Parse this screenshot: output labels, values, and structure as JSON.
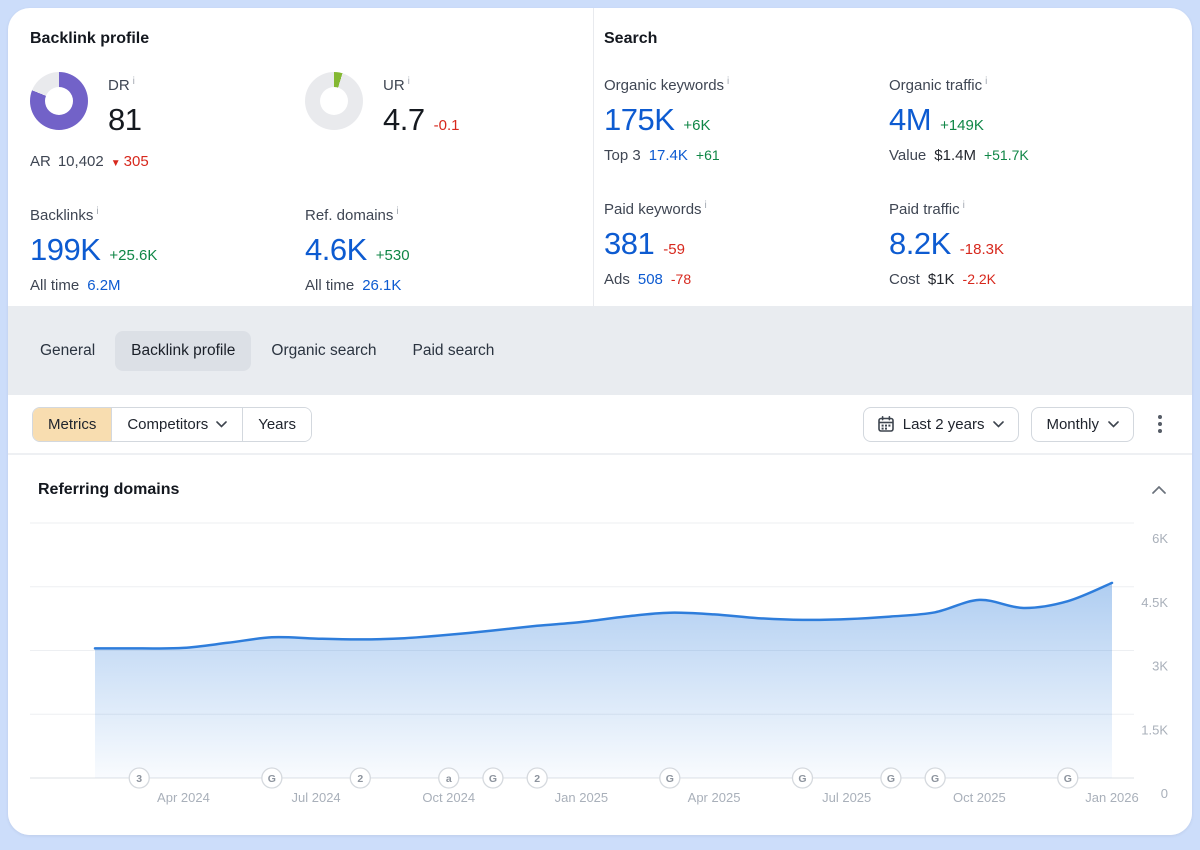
{
  "colors": {
    "blue": "#0d5bd1",
    "green": "#0f8646",
    "red": "#d7281d",
    "purple": "#7262c8",
    "lime": "#84b832",
    "chart_line": "#2e7ddb",
    "metrics_accent": "#f8ddb0",
    "page_background": "#ccddfa"
  },
  "backlink_profile": {
    "title": "Backlink profile",
    "dr": {
      "label": "DR",
      "value": "81",
      "percent": 81,
      "ar_label": "AR",
      "ar_value": "10,402",
      "ar_delta": "305"
    },
    "ur": {
      "label": "UR",
      "value": "4.7",
      "delta": "-0.1",
      "percent": 4.7
    },
    "backlinks": {
      "label": "Backlinks",
      "value": "199K",
      "delta": "+25.6K",
      "sub_label": "All time",
      "sub_value": "6.2M"
    },
    "ref_domains": {
      "label": "Ref. domains",
      "value": "4.6K",
      "delta": "+530",
      "sub_label": "All time",
      "sub_value": "26.1K"
    }
  },
  "search": {
    "title": "Search",
    "organic_keywords": {
      "label": "Organic keywords",
      "value": "175K",
      "delta": "+6K",
      "sub_label": "Top 3",
      "sub_value": "17.4K",
      "sub_delta": "+61"
    },
    "organic_traffic": {
      "label": "Organic traffic",
      "value": "4M",
      "delta": "+149K",
      "sub_label": "Value",
      "sub_value": "$1.4M",
      "sub_delta": "+51.7K"
    },
    "paid_keywords": {
      "label": "Paid keywords",
      "value": "381",
      "delta": "-59",
      "sub_label": "Ads",
      "sub_value": "508",
      "sub_delta": "-78"
    },
    "paid_traffic": {
      "label": "Paid traffic",
      "value": "8.2K",
      "delta": "-18.3K",
      "sub_label": "Cost",
      "sub_value": "$1K",
      "sub_delta": "-2.2K"
    }
  },
  "tabs": {
    "items": [
      {
        "label": "General",
        "active": false
      },
      {
        "label": "Backlink profile",
        "active": true
      },
      {
        "label": "Organic search",
        "active": false
      },
      {
        "label": "Paid search",
        "active": false
      }
    ]
  },
  "toolbar": {
    "metrics_label": "Metrics",
    "competitors_label": "Competitors",
    "years_label": "Years",
    "range_label": "Last 2 years",
    "granularity_label": "Monthly"
  },
  "chart_data": {
    "type": "area",
    "title": "Referring domains",
    "x": [
      "Feb 2024",
      "Mar 2024",
      "Apr 2024",
      "May 2024",
      "Jun 2024",
      "Jul 2024",
      "Aug 2024",
      "Sep 2024",
      "Oct 2024",
      "Nov 2024",
      "Dec 2024",
      "Jan 2025",
      "Feb 2025",
      "Mar 2025",
      "Apr 2025",
      "May 2025",
      "Jun 2025",
      "Jul 2025",
      "Aug 2025",
      "Sep 2025",
      "Oct 2025",
      "Nov 2025",
      "Dec 2025",
      "Jan 2026"
    ],
    "values": [
      3050,
      3050,
      3060,
      3180,
      3310,
      3280,
      3260,
      3290,
      3370,
      3470,
      3580,
      3670,
      3800,
      3890,
      3850,
      3760,
      3720,
      3740,
      3800,
      3900,
      4190,
      4000,
      4160,
      4590
    ],
    "ylim": [
      0,
      6000
    ],
    "yticks": [
      {
        "value": 6000,
        "label": "6K"
      },
      {
        "value": 4500,
        "label": "4.5K"
      },
      {
        "value": 3000,
        "label": "3K"
      },
      {
        "value": 1500,
        "label": "1.5K"
      },
      {
        "value": 0,
        "label": "0"
      }
    ],
    "xticks": [
      {
        "index": 2,
        "label": "Apr 2024"
      },
      {
        "index": 5,
        "label": "Jul 2024"
      },
      {
        "index": 8,
        "label": "Oct 2024"
      },
      {
        "index": 11,
        "label": "Jan 2025"
      },
      {
        "index": 14,
        "label": "Apr 2025"
      },
      {
        "index": 17,
        "label": "Jul 2025"
      },
      {
        "index": 20,
        "label": "Oct 2025"
      },
      {
        "index": 23,
        "label": "Jan 2026"
      }
    ],
    "markers": [
      {
        "index": 1,
        "label": "3"
      },
      {
        "index": 4,
        "label": "G"
      },
      {
        "index": 6,
        "label": "2"
      },
      {
        "index": 8,
        "label": "a"
      },
      {
        "index": 9,
        "label": "G"
      },
      {
        "index": 10,
        "label": "2"
      },
      {
        "index": 13,
        "label": "G"
      },
      {
        "index": 16,
        "label": "G"
      },
      {
        "index": 18,
        "label": "G"
      },
      {
        "index": 19,
        "label": "G"
      },
      {
        "index": 22,
        "label": "G"
      }
    ],
    "grid": true,
    "legend": false,
    "ytick_position": "right"
  }
}
